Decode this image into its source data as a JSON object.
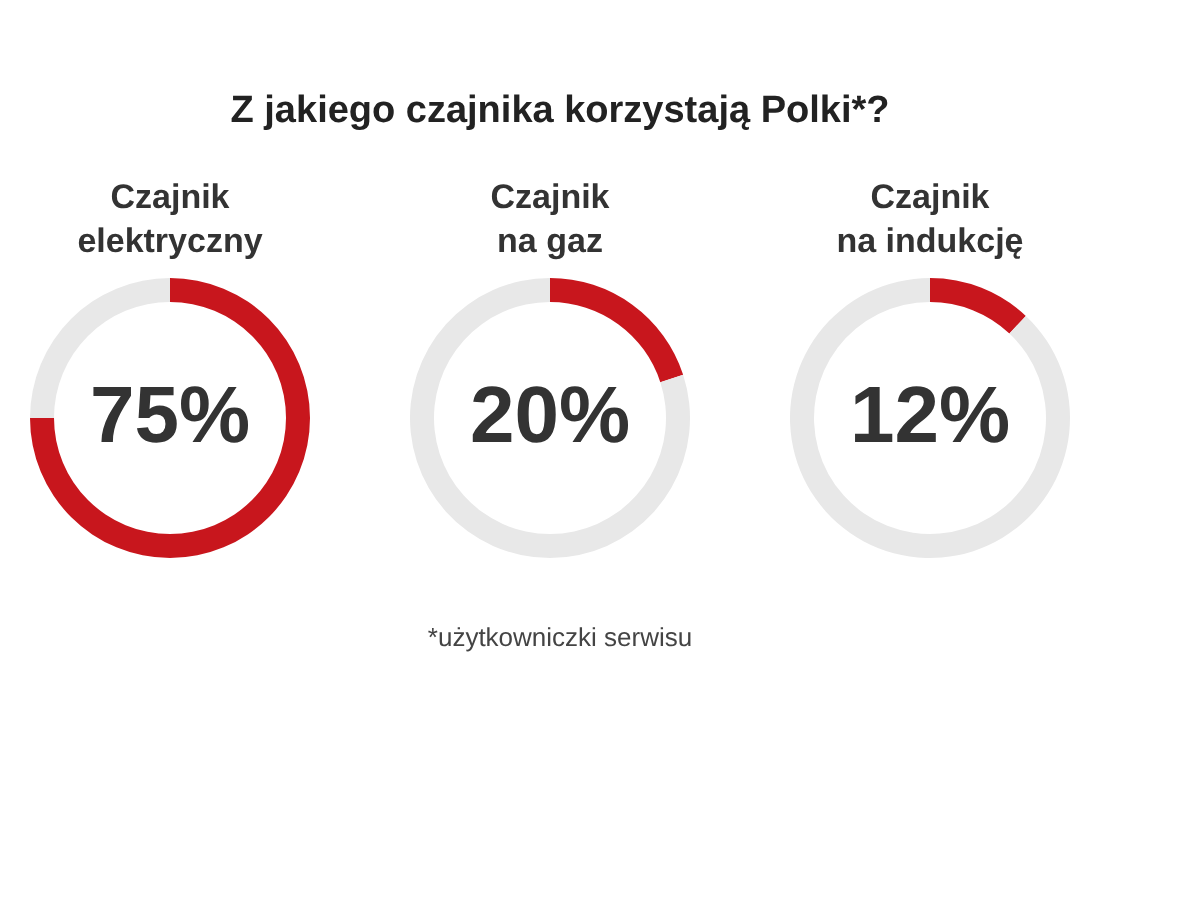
{
  "chart_data": [
    {
      "type": "donut",
      "title": "Czajnik elektryczny",
      "categories": [
        null,
        null
      ],
      "values": [
        75,
        25
      ],
      "colors": [
        "#c8161d",
        "#e8e8e8"
      ],
      "value_labels": [
        "75%",
        null
      ],
      "annotations": [
        "Z jakiego czajnika korzystają Polki*?"
      ]
    },
    {
      "type": "donut",
      "title": "Czajnik na gaz",
      "categories": [
        null,
        null
      ],
      "values": [
        20,
        80
      ],
      "colors": [
        "#c8161d",
        "#e8e8e8"
      ],
      "value_labels": [
        "20%",
        null
      ]
    },
    {
      "type": "donut",
      "title": "Czajnik na indukcję",
      "categories": [
        null,
        null
      ],
      "values": [
        12,
        88
      ],
      "colors": [
        "#c8161d",
        "#e8e8e8"
      ],
      "value_labels": [
        "12%",
        null
      ],
      "annotations": [
        "*użytkowniczki serwisu"
      ]
    }
  ]
}
